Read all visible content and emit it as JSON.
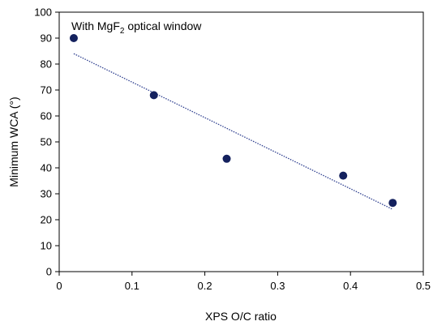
{
  "chart_data": {
    "type": "scatter",
    "title": "",
    "xlabel": "XPS O/C ratio",
    "ylabel": "Minimum WCA (°)",
    "xlim": [
      0,
      0.5
    ],
    "ylim": [
      0,
      100
    ],
    "x_ticks": [
      0,
      0.1,
      0.2,
      0.3,
      0.4,
      0.5
    ],
    "x_tick_labels": [
      "0",
      "0.1",
      "0.2",
      "0.3",
      "0.4",
      "0.5"
    ],
    "y_ticks": [
      0,
      10,
      20,
      30,
      40,
      50,
      60,
      70,
      80,
      90,
      100
    ],
    "y_tick_labels": [
      "0",
      "10",
      "20",
      "30",
      "40",
      "50",
      "60",
      "70",
      "80",
      "90",
      "100"
    ],
    "grid": false,
    "legend": "none",
    "annotation": {
      "prefix": "With MgF",
      "subscript": "2",
      "suffix": " optical window"
    },
    "series": [
      {
        "x": [
          0.02,
          0.13,
          0.23,
          0.39,
          0.458
        ],
        "y": [
          90,
          68,
          43.5,
          37,
          26.5
        ],
        "color": "#14215e"
      }
    ],
    "trendline": {
      "style": "dotted",
      "color": "#2e3f8f",
      "x": [
        0.02,
        0.458
      ],
      "y": [
        84,
        24
      ]
    }
  }
}
